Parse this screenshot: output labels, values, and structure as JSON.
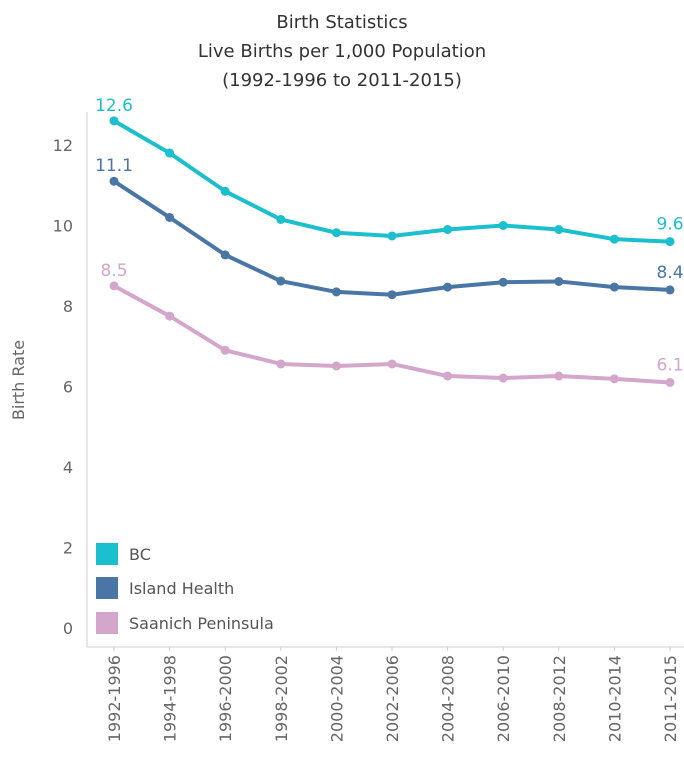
{
  "chart_data": {
    "type": "line",
    "title": "Birth Statistics",
    "subtitle_line1": "Live Births per 1,000 Population",
    "subtitle_line2": "(1992-1996 to 2011-2015)",
    "ylabel": "Birth Rate",
    "xlabel": "",
    "ylim": [
      0,
      13
    ],
    "yticks": [
      0,
      2,
      4,
      6,
      8,
      10,
      12
    ],
    "categories": [
      "1992-1996",
      "1994-1998",
      "1996-2000",
      "1998-2002",
      "2000-2004",
      "2002-2006",
      "2004-2008",
      "2006-2010",
      "2008-2012",
      "2010-2014",
      "2011-2015"
    ],
    "series": [
      {
        "name": "BC",
        "color": "#1bbfcd",
        "values": [
          12.6,
          11.8,
          10.85,
          10.15,
          9.82,
          9.74,
          9.9,
          10.0,
          9.9,
          9.66,
          9.6
        ],
        "label_first": "12.6",
        "label_last": "9.6"
      },
      {
        "name": "Island Health",
        "color": "#4a76a6",
        "values": [
          11.1,
          10.2,
          9.27,
          8.62,
          8.35,
          8.28,
          8.47,
          8.59,
          8.61,
          8.47,
          8.4
        ],
        "label_first": "11.1",
        "label_last": "8.4"
      },
      {
        "name": "Saanich Peninsula",
        "color": "#d4a6cb",
        "values": [
          8.5,
          7.75,
          6.9,
          6.56,
          6.51,
          6.56,
          6.26,
          6.21,
          6.26,
          6.19,
          6.1
        ],
        "label_first": "8.5",
        "label_last": "6.1"
      }
    ],
    "grid": false,
    "legend_position": "bottom-left"
  }
}
